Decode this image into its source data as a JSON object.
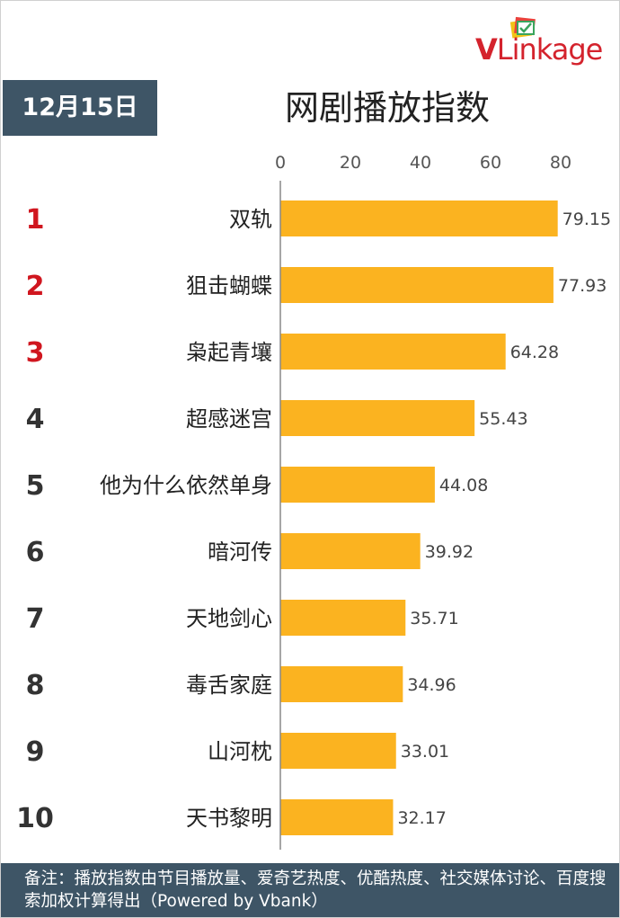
{
  "brand": {
    "logo_text_v": "V",
    "logo_text_rest": "Linkage",
    "logo_color": "#d4232d"
  },
  "header": {
    "date": "12月15日",
    "title": "网剧播放指数"
  },
  "chart_data": {
    "type": "bar",
    "orientation": "horizontal",
    "title": "网剧播放指数",
    "xlim": [
      0,
      80
    ],
    "x_ticks": [
      "0",
      "20",
      "40",
      "60",
      "80"
    ],
    "ranks": [
      "1",
      "2",
      "3",
      "4",
      "5",
      "6",
      "7",
      "8",
      "9",
      "10"
    ],
    "categories": [
      "双轨",
      "狙击蝴蝶",
      "枭起青壤",
      "超感迷宫",
      "他为什么依然单身",
      "暗河传",
      "天地剑心",
      "毒舌家庭",
      "山河枕",
      "天书黎明"
    ],
    "values": [
      79.15,
      77.93,
      64.28,
      55.43,
      44.08,
      39.92,
      35.71,
      34.96,
      33.01,
      32.17
    ],
    "value_labels": [
      "79.15",
      "77.93",
      "64.28",
      "55.43",
      "44.08",
      "39.92",
      "35.71",
      "34.96",
      "33.01",
      "32.17"
    ],
    "bar_color": "#fbb320",
    "top_rank_color": "#d0161f",
    "rank_color": "#333333",
    "grid": false
  },
  "footnote": {
    "text": "备注：播放指数由节目播放量、爱奇艺热度、优酷热度、社交媒体讨论、百度搜索加权计算得出（Powered by Vbank）"
  }
}
